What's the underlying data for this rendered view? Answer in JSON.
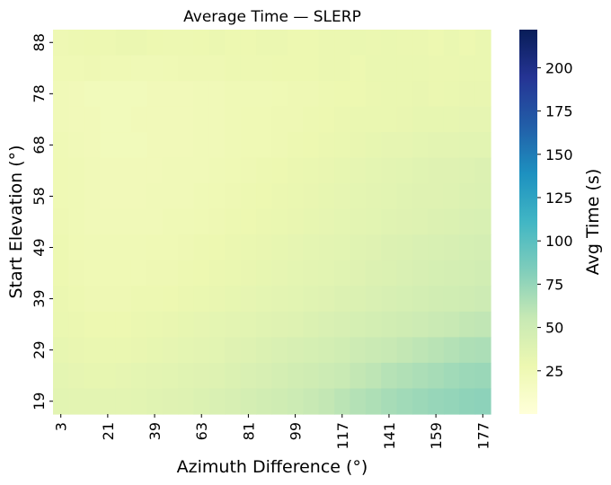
{
  "chart_data": {
    "type": "heatmap",
    "title": "Average Time — SLERP",
    "xlabel": "Azimuth Difference (°)",
    "ylabel": "Start Elevation (°)",
    "x_tick_labels": [
      "3",
      "21",
      "39",
      "63",
      "81",
      "99",
      "117",
      "141",
      "159",
      "177"
    ],
    "x_tick_cols": [
      0,
      3,
      6,
      9,
      12,
      15,
      18,
      21,
      24,
      27
    ],
    "y_tick_labels_top_to_bottom": [
      "88",
      "78",
      "68",
      "58",
      "49",
      "39",
      "29",
      "19"
    ],
    "y_tick_rows": [
      0,
      2,
      4,
      6,
      8,
      10,
      12,
      14
    ],
    "n_cols": 28,
    "n_rows": 15,
    "colorbar": {
      "label": "Avg Time (s)",
      "min": 0,
      "max": 222,
      "ticks": [
        25,
        50,
        75,
        100,
        125,
        150,
        175,
        200
      ],
      "colormap": "YlGnBu"
    },
    "values_top_to_bottom": [
      [
        26,
        27,
        28,
        27,
        29,
        29,
        28,
        27,
        27,
        28,
        29,
        28,
        28,
        29,
        29,
        28,
        28,
        29,
        29,
        30,
        29,
        30,
        29,
        29,
        28,
        30,
        28,
        30
      ],
      [
        25,
        25,
        26,
        25,
        25,
        24,
        24,
        25,
        26,
        26,
        26,
        27,
        27,
        27,
        28,
        28,
        28,
        29,
        29,
        28,
        30,
        30,
        30,
        30,
        29,
        29,
        30,
        30
      ],
      [
        23,
        22,
        21,
        21,
        21,
        21,
        22,
        22,
        22,
        23,
        23,
        24,
        24,
        24,
        25,
        26,
        26,
        27,
        28,
        28,
        29,
        30,
        30,
        31,
        29,
        30,
        31,
        31
      ],
      [
        23,
        22,
        22,
        21,
        21,
        22,
        22,
        22,
        22,
        23,
        23,
        24,
        25,
        25,
        26,
        26,
        27,
        28,
        29,
        30,
        30,
        30,
        31,
        32,
        32,
        32,
        33,
        33
      ],
      [
        24,
        23,
        22,
        21,
        21,
        21,
        22,
        22,
        22,
        23,
        23,
        24,
        25,
        25,
        26,
        27,
        28,
        29,
        30,
        31,
        32,
        33,
        33,
        34,
        35,
        35,
        36,
        36
      ],
      [
        25,
        24,
        23,
        22,
        22,
        22,
        22,
        23,
        23,
        23,
        24,
        25,
        26,
        27,
        28,
        29,
        30,
        31,
        32,
        33,
        34,
        35,
        36,
        37,
        38,
        38,
        39,
        40
      ],
      [
        25,
        24,
        23,
        22,
        22,
        22,
        23,
        23,
        23,
        24,
        25,
        26,
        27,
        28,
        29,
        30,
        31,
        32,
        33,
        34,
        35,
        36,
        37,
        38,
        38,
        39,
        40,
        41
      ],
      [
        26,
        24,
        23,
        23,
        23,
        23,
        23,
        24,
        24,
        25,
        26,
        27,
        28,
        29,
        30,
        31,
        32,
        33,
        34,
        35,
        36,
        37,
        38,
        39,
        40,
        41,
        42,
        43
      ],
      [
        27,
        25,
        24,
        24,
        24,
        24,
        25,
        25,
        26,
        27,
        28,
        29,
        30,
        31,
        32,
        33,
        34,
        35,
        36,
        37,
        38,
        40,
        41,
        42,
        43,
        44,
        45,
        46
      ],
      [
        28,
        26,
        25,
        25,
        25,
        25,
        26,
        26,
        27,
        28,
        29,
        30,
        31,
        32,
        33,
        34,
        35,
        36,
        37,
        38,
        40,
        41,
        42,
        44,
        45,
        46,
        47,
        48
      ],
      [
        29,
        27,
        26,
        26,
        26,
        27,
        27,
        28,
        29,
        30,
        31,
        32,
        33,
        34,
        35,
        36,
        37,
        38,
        40,
        41,
        42,
        44,
        45,
        47,
        48,
        49,
        50,
        51
      ],
      [
        30,
        29,
        28,
        28,
        28,
        29,
        30,
        31,
        32,
        33,
        34,
        35,
        36,
        37,
        38,
        39,
        41,
        42,
        44,
        45,
        47,
        48,
        50,
        51,
        53,
        55,
        57,
        58
      ],
      [
        32,
        31,
        30,
        30,
        30,
        31,
        32,
        33,
        34,
        35,
        36,
        38,
        39,
        41,
        42,
        44,
        45,
        47,
        49,
        51,
        53,
        55,
        57,
        59,
        61,
        63,
        65,
        66
      ],
      [
        34,
        33,
        32,
        32,
        33,
        34,
        35,
        36,
        37,
        38,
        39,
        41,
        42,
        44,
        46,
        48,
        50,
        52,
        54,
        57,
        59,
        62,
        64,
        66,
        68,
        70,
        72,
        73
      ],
      [
        36,
        35,
        35,
        35,
        35,
        36,
        37,
        38,
        39,
        41,
        42,
        44,
        46,
        48,
        50,
        52,
        55,
        57,
        60,
        63,
        65,
        68,
        70,
        72,
        74,
        75,
        77,
        78
      ]
    ]
  }
}
